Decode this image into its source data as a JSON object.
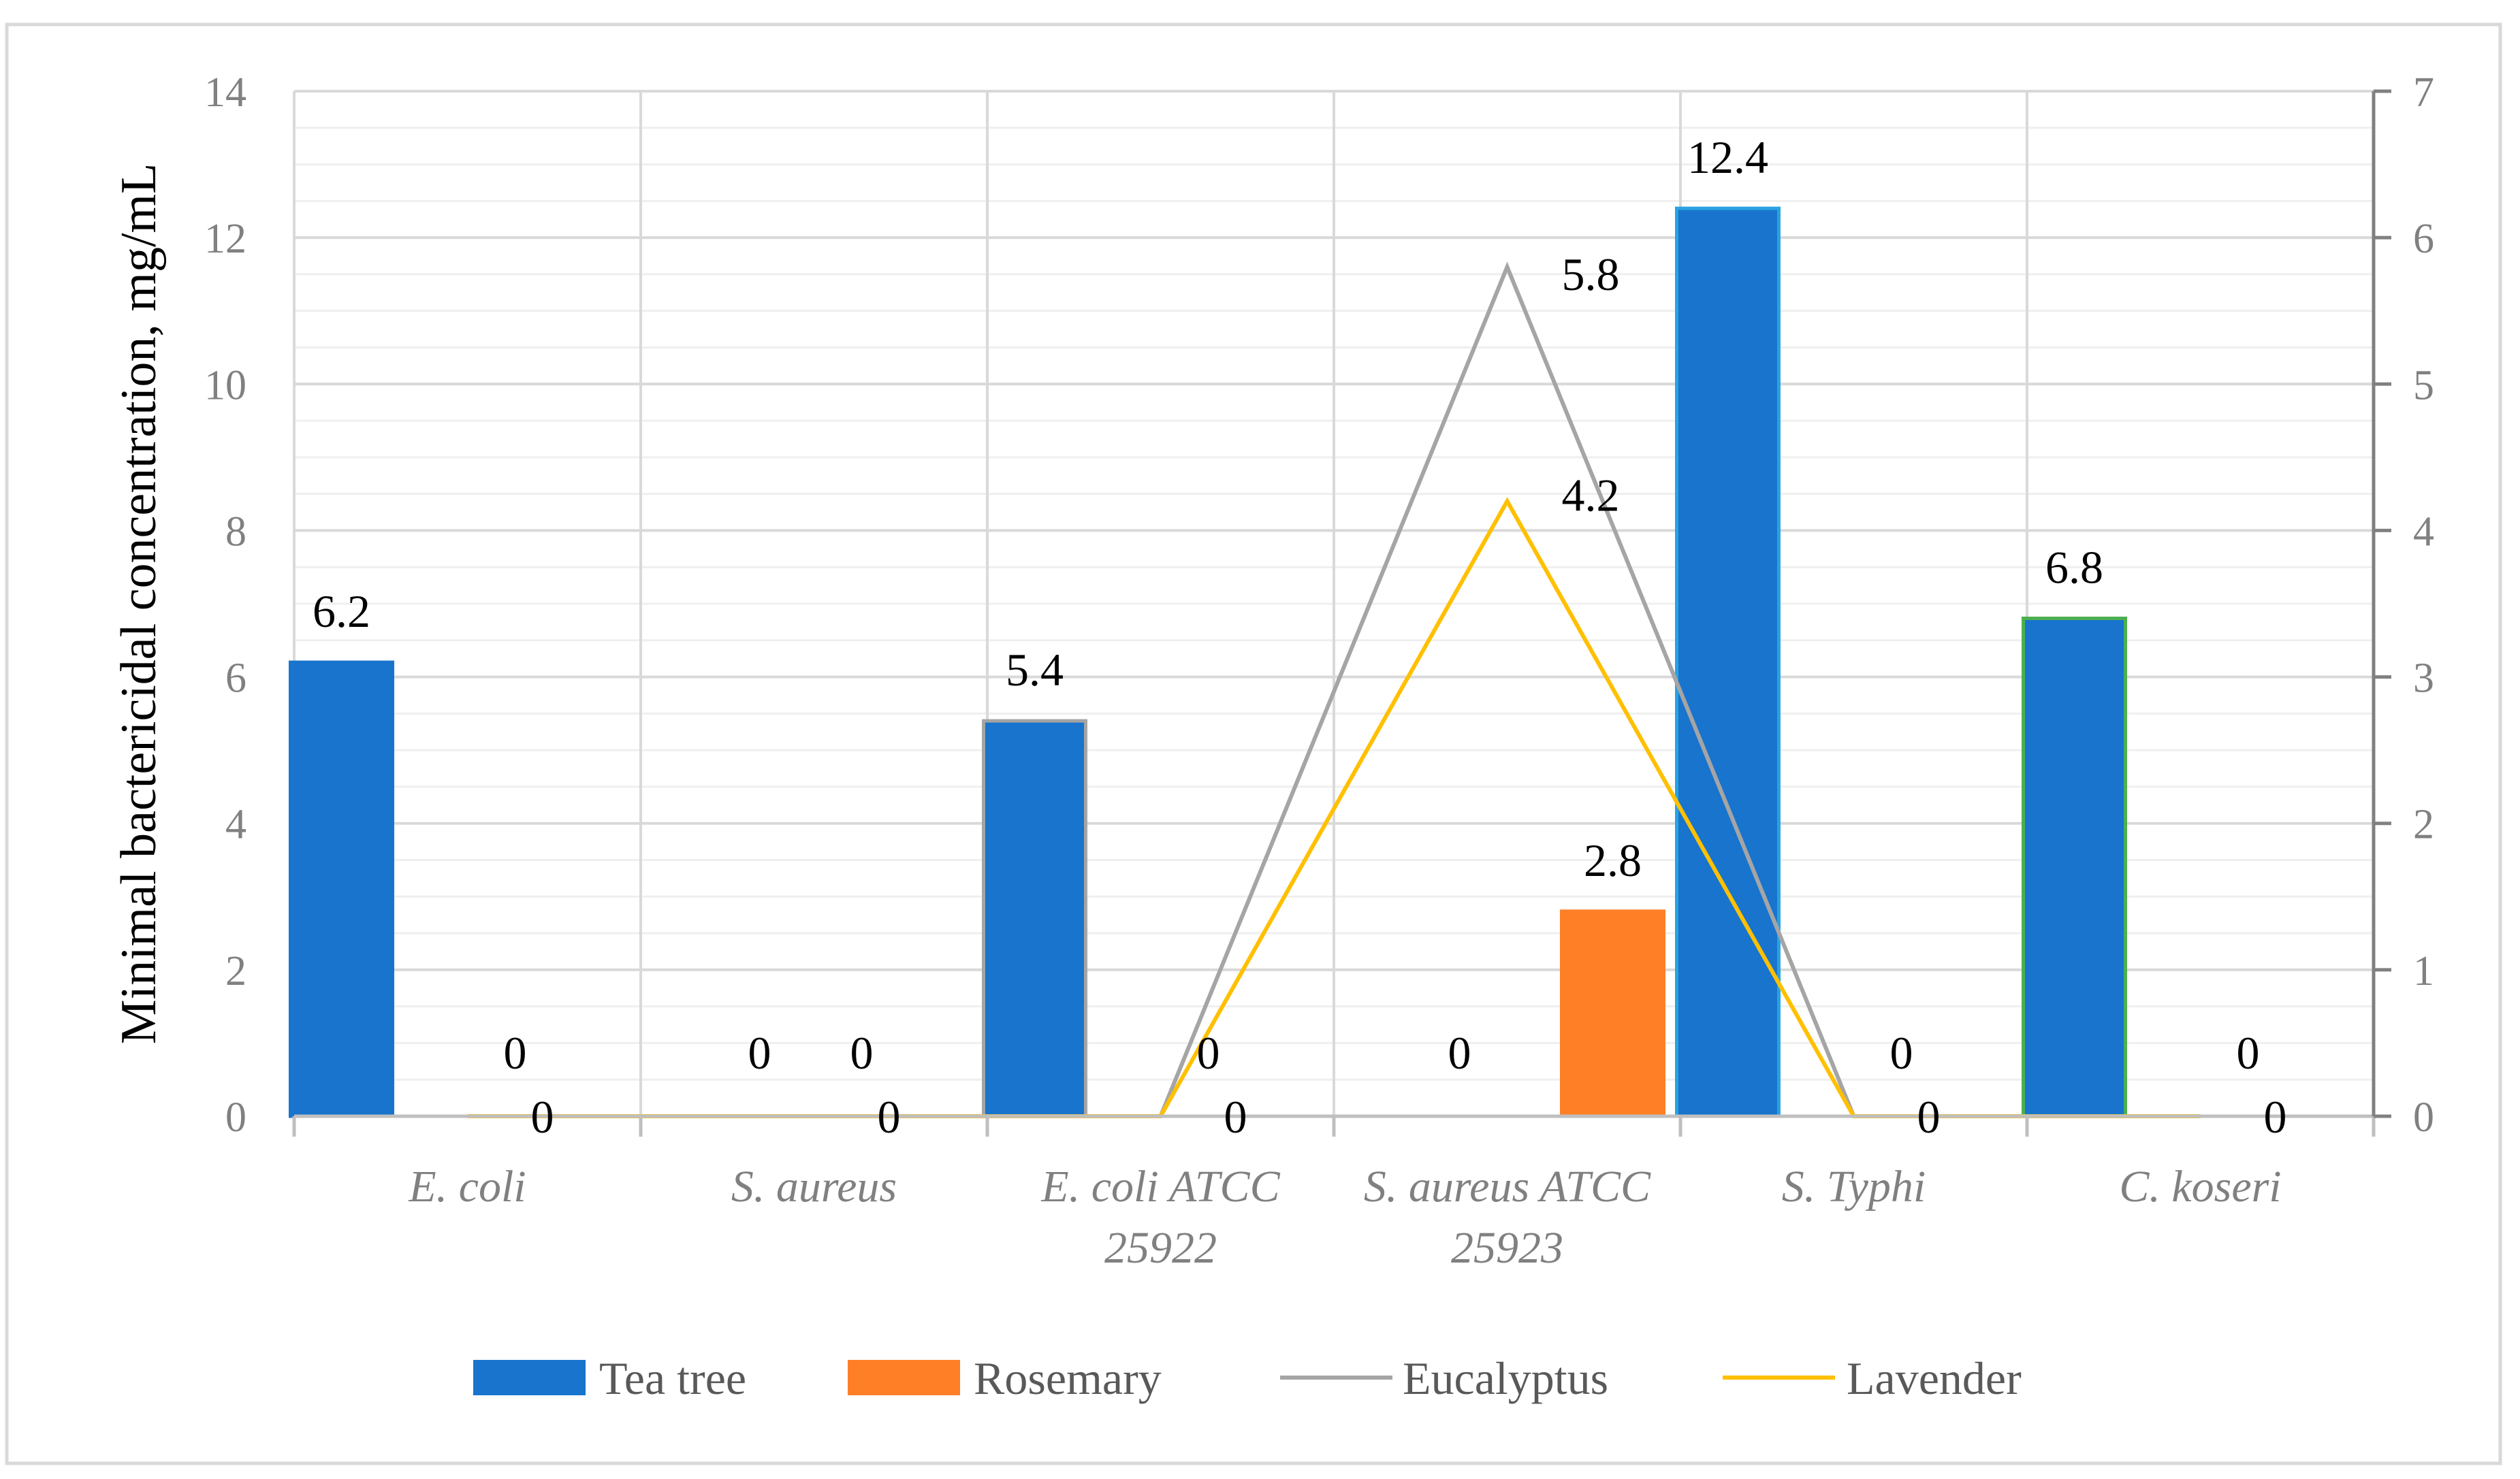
{
  "chart_data": {
    "type": "bar",
    "title": "",
    "ylabel": "Minimal bactericidal concentration, mg/mL",
    "xlabel": "",
    "ylim": [
      0,
      14
    ],
    "y_ticks": [
      "0",
      "2",
      "4",
      "6",
      "8",
      "10",
      "12",
      "14"
    ],
    "y2lim": [
      0,
      7
    ],
    "y2_ticks": [
      "0",
      "1",
      "2",
      "3",
      "4",
      "5",
      "6",
      "7"
    ],
    "grid": true,
    "legend_position": "bottom",
    "categories": [
      [
        "E. coli"
      ],
      [
        "S. aureus"
      ],
      [
        "E. coli ATCC",
        "25922"
      ],
      [
        "S. aureus ATCC",
        "25923"
      ],
      [
        "S. Typhi"
      ],
      [
        "C. koseri"
      ]
    ],
    "series": [
      {
        "name": "Tea tree",
        "type": "bar",
        "axis": "primary",
        "color": "#1874CD",
        "values": [
          6.2,
          null,
          5.4,
          0,
          12.4,
          6.8
        ],
        "labels": [
          "6.2",
          "0",
          "5.4",
          "0",
          "12.4",
          "6.8"
        ],
        "outlines": [
          "#1874CD",
          "#1874CD",
          "#A5A5A5",
          "#1874CD",
          "#29A3E1",
          "#4CAF50"
        ]
      },
      {
        "name": "Rosemary",
        "type": "bar",
        "axis": "primary",
        "color": "#FF7F27",
        "values": [
          0,
          0,
          0,
          2.8,
          0,
          0
        ],
        "labels": [
          "0",
          "0",
          "0",
          "2.8",
          "0",
          "0"
        ]
      },
      {
        "name": "Eucalyptus",
        "type": "line",
        "axis": "secondary",
        "color": "#A5A5A5",
        "values": [
          0,
          0,
          0,
          5.8,
          0,
          0
        ],
        "labels": [
          "",
          "",
          "",
          "5.8",
          "",
          ""
        ]
      },
      {
        "name": "Lavender",
        "type": "line",
        "axis": "secondary",
        "color": "#FFC000",
        "values": [
          0,
          0,
          0,
          4.2,
          0,
          0
        ],
        "labels": [
          "0",
          "0",
          "0",
          "4.2",
          "0",
          "0"
        ]
      }
    ]
  }
}
